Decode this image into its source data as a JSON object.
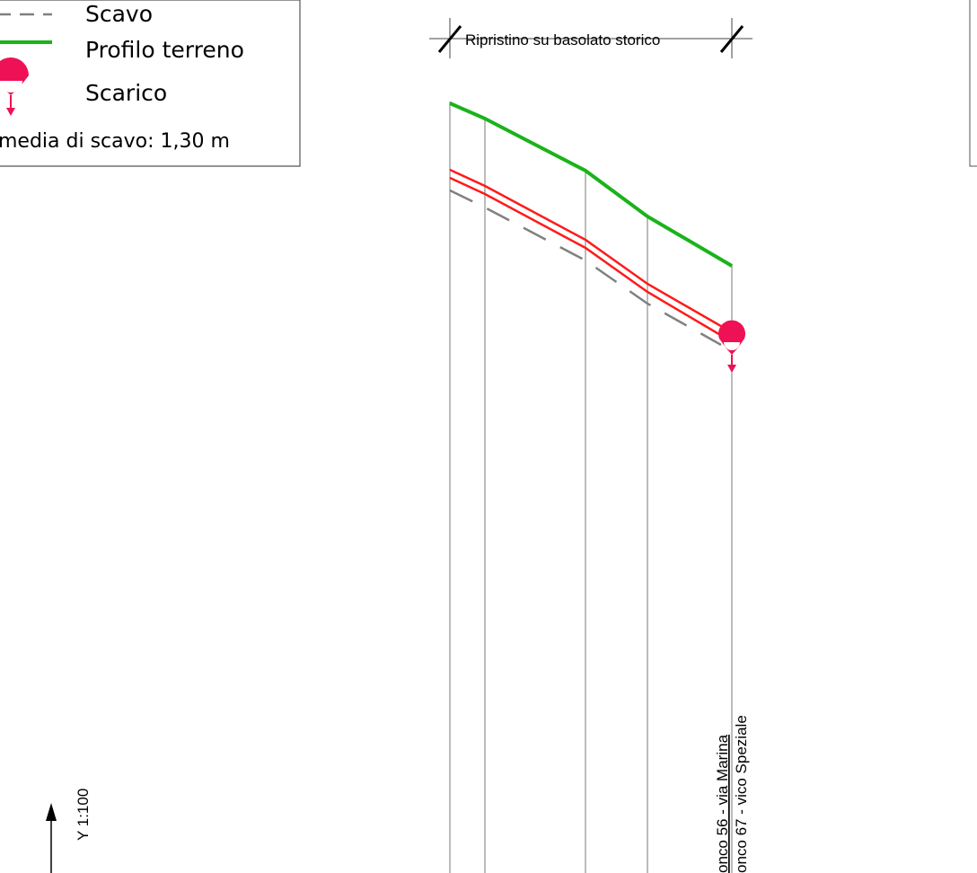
{
  "legend": {
    "items": [
      {
        "label": "Scavo",
        "symbol": "dashed-gray-line"
      },
      {
        "label": "Profilo terreno",
        "symbol": "solid-green-line"
      },
      {
        "label": "Scarico",
        "symbol": "discharge-icon"
      }
    ],
    "note": "media di scavo: 1,30 m"
  },
  "dimension": {
    "label": "Ripristino su basolato storico"
  },
  "scale": {
    "label": "Y 1:100"
  },
  "sections": {
    "line1": "onco 56 - via Marina",
    "line2": "onco 67 - vico Speziale"
  },
  "colors": {
    "terrain": "#1ab31a",
    "pipe": "#ff1a1a",
    "excavation": "#808080",
    "discharge": "#ee1155",
    "vertical": "#7a7a7a"
  }
}
